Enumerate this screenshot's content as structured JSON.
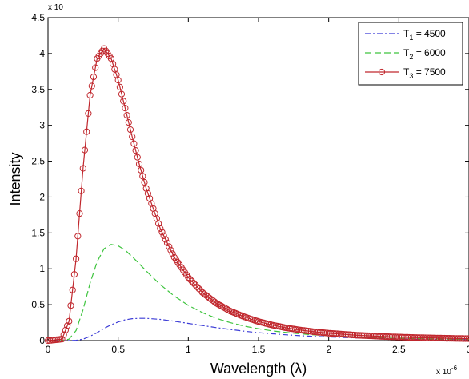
{
  "chart_data": {
    "type": "line",
    "title": "",
    "xlabel": "Wavelength (λ)",
    "ylabel": "Intensity",
    "x_exponent": "x 10",
    "x_exponent_power": "-6",
    "y_exponent": "x 10",
    "xlim": [
      0,
      3
    ],
    "ylim": [
      0,
      4.5
    ],
    "x_ticks": [
      0,
      0.5,
      1,
      1.5,
      2,
      2.5,
      3
    ],
    "x_tick_labels": [
      "0",
      "0.5",
      "1",
      "1.5",
      "2",
      "2.5",
      "3"
    ],
    "y_ticks": [
      0,
      0.5,
      1,
      1.5,
      2,
      2.5,
      3,
      3.5,
      4,
      4.5
    ],
    "y_tick_labels": [
      "0",
      "0.5",
      "1",
      "1.5",
      "2",
      "2.5",
      "3",
      "3.5",
      "4",
      "4.5"
    ],
    "grid": false,
    "legend_position": "top-right",
    "x": [
      0.0,
      0.1,
      0.15,
      0.2,
      0.25,
      0.3,
      0.35,
      0.4,
      0.45,
      0.5,
      0.55,
      0.6,
      0.65,
      0.7,
      0.8,
      0.9,
      1.0,
      1.1,
      1.2,
      1.3,
      1.4,
      1.5,
      1.6,
      1.7,
      1.8,
      1.9,
      2.0,
      2.2,
      2.4,
      2.6,
      2.8,
      3.0
    ],
    "series": [
      {
        "name": "T",
        "subscript": "1",
        "value_label": " = 4500",
        "color": "#3b3bd6",
        "style": "dashdot",
        "marker": "none",
        "values": [
          0,
          0,
          0,
          0.004,
          0.02,
          0.06,
          0.11,
          0.17,
          0.22,
          0.26,
          0.29,
          0.305,
          0.31,
          0.31,
          0.295,
          0.27,
          0.24,
          0.21,
          0.18,
          0.155,
          0.13,
          0.11,
          0.095,
          0.08,
          0.068,
          0.058,
          0.05,
          0.037,
          0.028,
          0.021,
          0.016,
          0.013
        ]
      },
      {
        "name": "T",
        "subscript": "2",
        "value_label": " = 6000",
        "color": "#3ec43e",
        "style": "dashed",
        "marker": "none",
        "values": [
          0,
          0,
          0.02,
          0.14,
          0.43,
          0.8,
          1.1,
          1.28,
          1.34,
          1.32,
          1.26,
          1.17,
          1.07,
          0.97,
          0.78,
          0.62,
          0.49,
          0.39,
          0.31,
          0.25,
          0.2,
          0.165,
          0.135,
          0.112,
          0.094,
          0.079,
          0.067,
          0.049,
          0.037,
          0.028,
          0.022,
          0.017
        ]
      },
      {
        "name": "T",
        "subscript": "3",
        "value_label": " = 7500",
        "color": "#c0272d",
        "style": "solid",
        "marker": "circle",
        "values": [
          0,
          0.02,
          0.27,
          1.14,
          2.4,
          3.42,
          3.93,
          4.07,
          3.93,
          3.63,
          3.24,
          2.84,
          2.46,
          2.12,
          1.56,
          1.16,
          0.88,
          0.67,
          0.52,
          0.41,
          0.33,
          0.265,
          0.215,
          0.176,
          0.146,
          0.122,
          0.103,
          0.075,
          0.056,
          0.043,
          0.034,
          0.027
        ]
      }
    ]
  }
}
